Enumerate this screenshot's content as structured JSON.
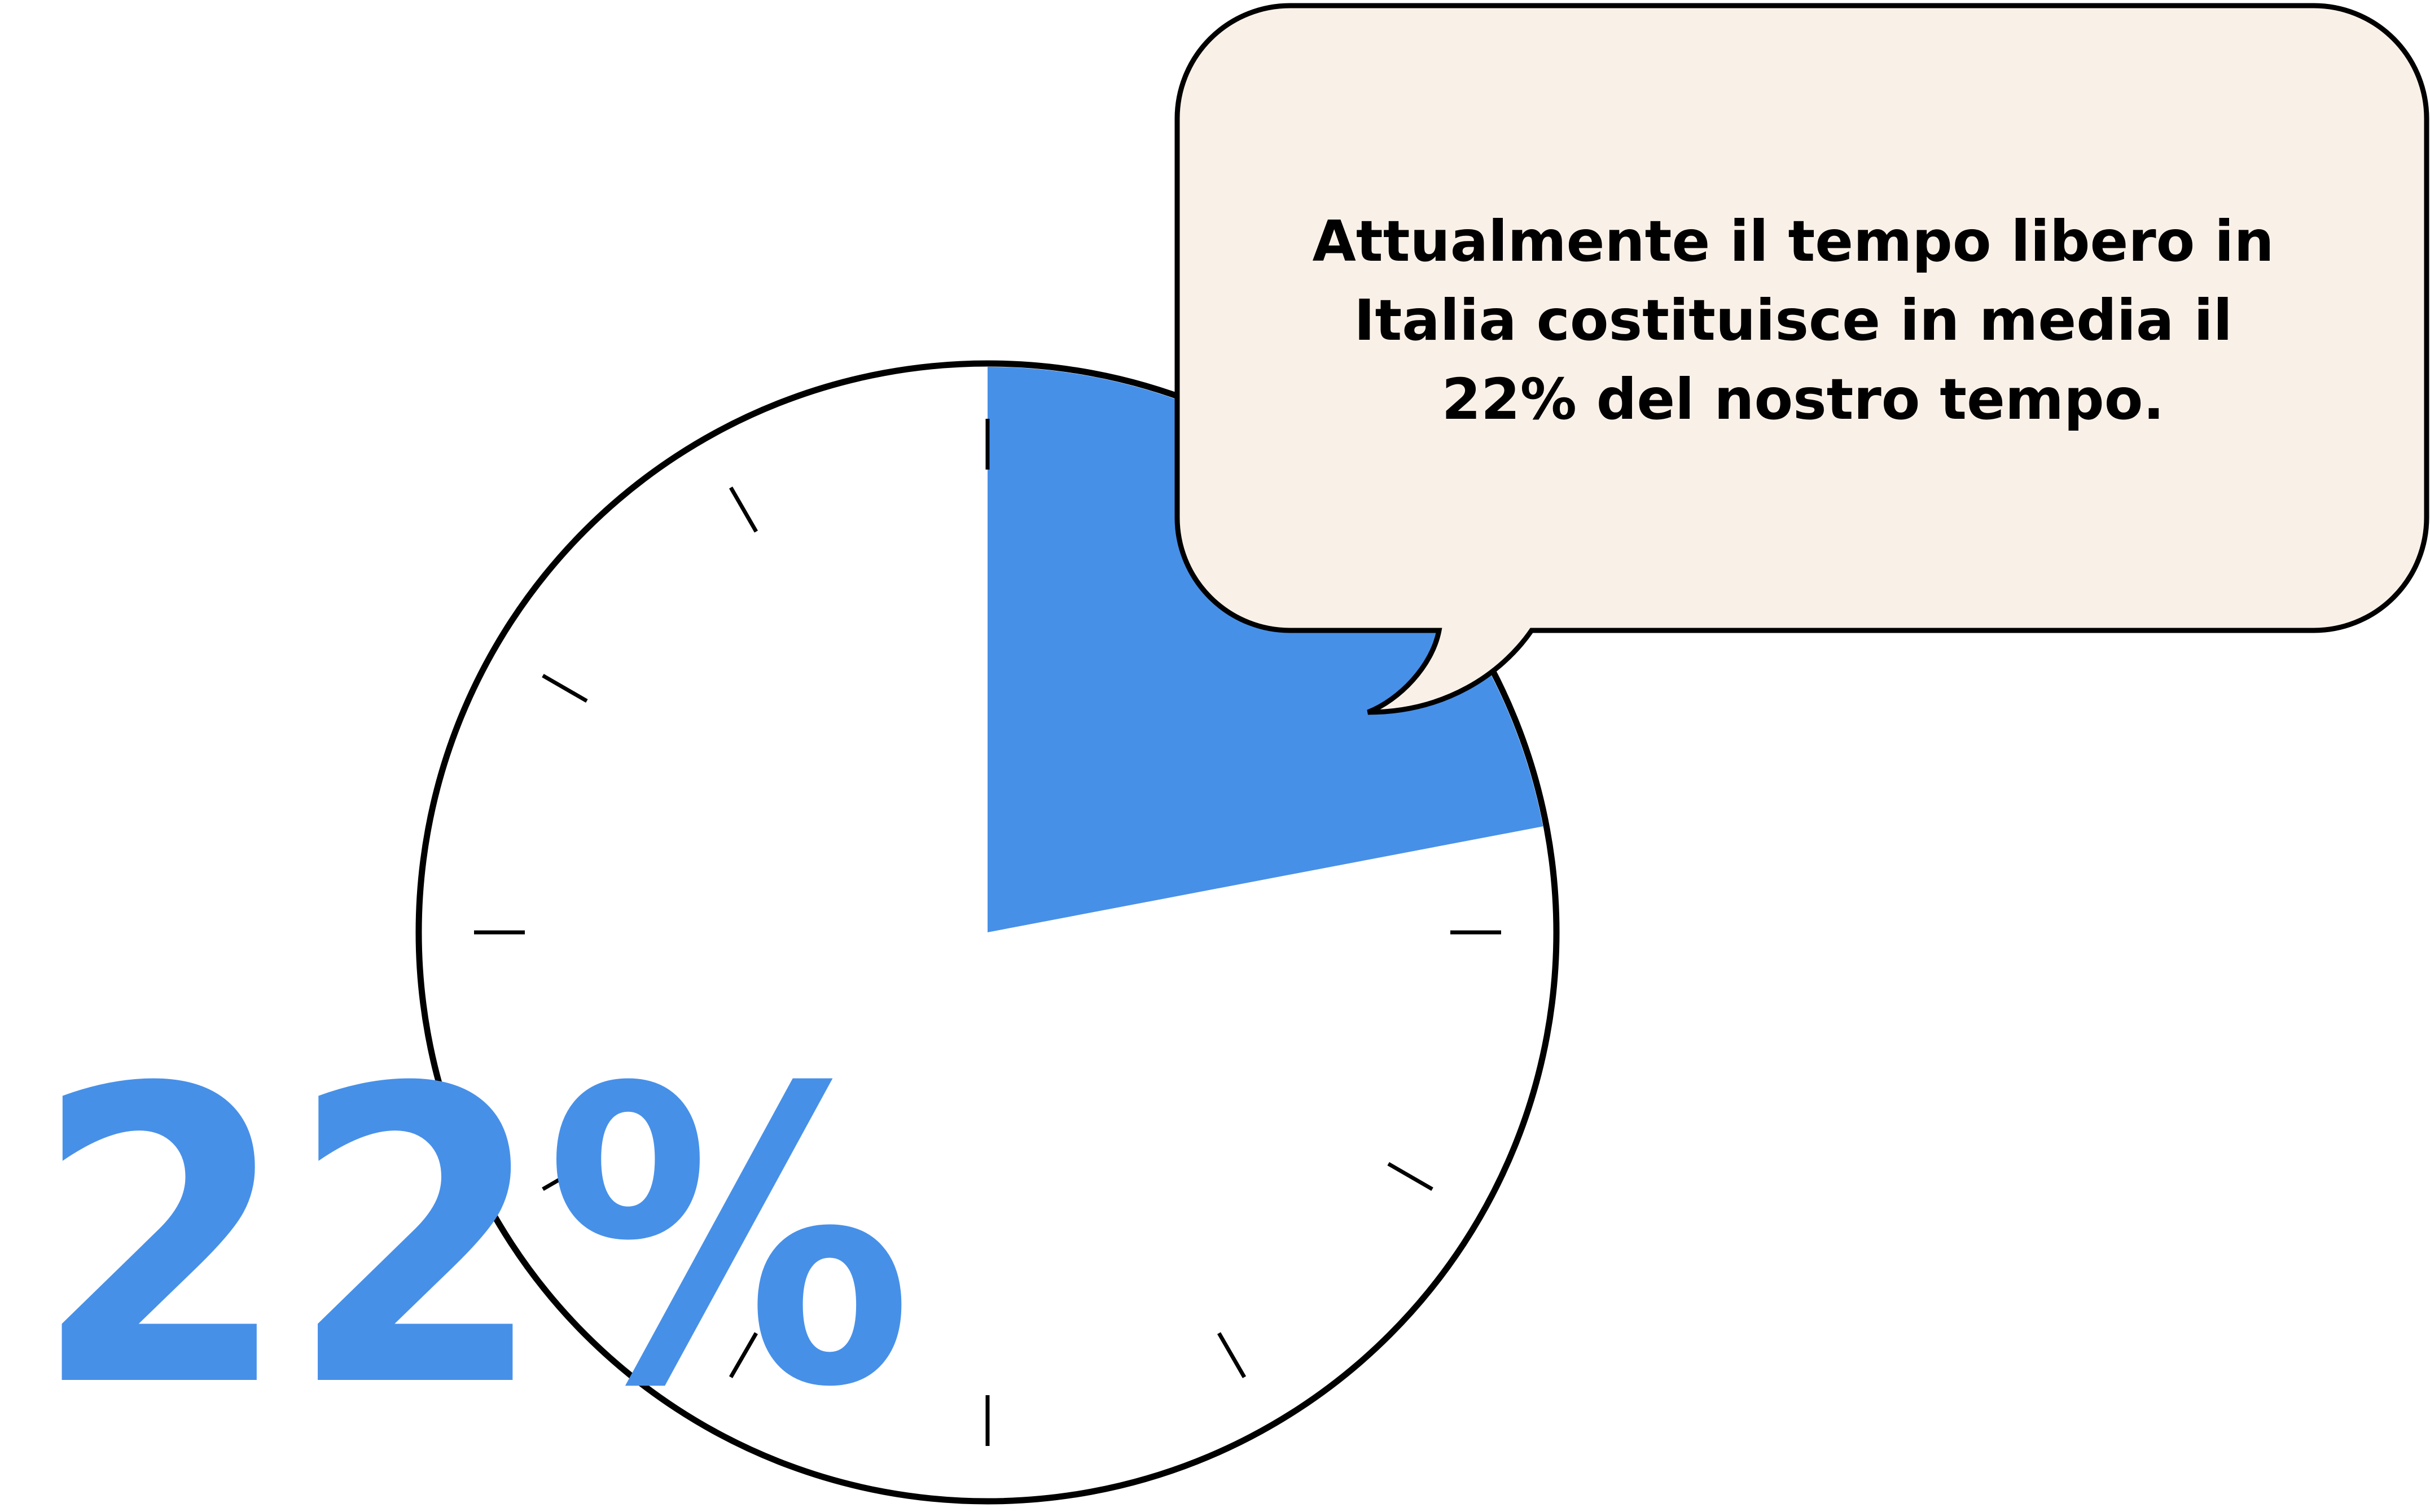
{
  "callout": {
    "lines": [
      "Attualmente il tempo libero in",
      "Italia costituisce in media il",
      "22% del nostro tempo."
    ]
  },
  "highlight_label": "22%",
  "colors": {
    "accent": "#4790E8",
    "bubble_fill": "#F9F1E8",
    "outline": "#000000",
    "background": "#FFFFFF"
  },
  "chart_data": {
    "type": "pie",
    "slices": [
      {
        "value": 22,
        "color": "#4790E8"
      },
      {
        "value": 78,
        "color": "#FFFFFF"
      }
    ],
    "start_angle": "12 o'clock",
    "direction": "clockwise",
    "tick_marks": 12
  }
}
